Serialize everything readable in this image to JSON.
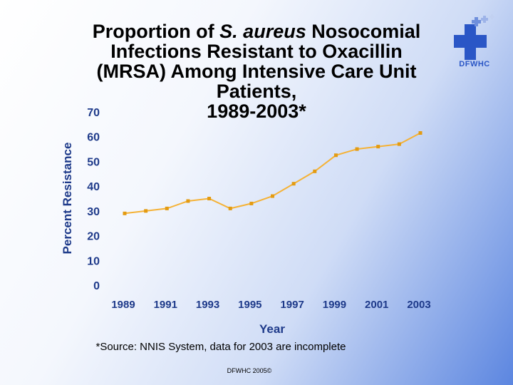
{
  "slide": {
    "title_lines": [
      "Proportion of S. aureus Nosocomial",
      "Infections Resistant to Oxacillin",
      "(MRSA) Among Intensive Care Unit",
      "Patients,",
      "1989-2003*"
    ],
    "title_italic": "S. aureus",
    "logo_text": "DFWHC",
    "source_note": "*Source: NNIS System, data for 2003 are incomplete",
    "footer": "DFWHC 2005©"
  },
  "colors": {
    "line": "#f5b236",
    "marker": "#e39b12",
    "axis_text": "#1e3a8a",
    "logo": "#2a56c6"
  },
  "chart_data": {
    "type": "line",
    "title": "Proportion of S. aureus Nosocomial Infections Resistant to Oxacillin (MRSA) Among Intensive Care Unit Patients, 1989-2003*",
    "xlabel": "Year",
    "ylabel": "Percent Resistance",
    "x": [
      1989,
      1990,
      1991,
      1992,
      1993,
      1994,
      1995,
      1996,
      1997,
      1998,
      1999,
      2000,
      2001,
      2002,
      2003
    ],
    "series": [
      {
        "name": "MRSA",
        "values": [
          29,
          30,
          31,
          34,
          35,
          31,
          33,
          36,
          41,
          46,
          52.5,
          55,
          56,
          57,
          61.5
        ]
      }
    ],
    "x_tick_labels": [
      "1989",
      "1991",
      "1993",
      "1995",
      "1997",
      "1999",
      "2001",
      "2003"
    ],
    "y_tick_labels": [
      "0",
      "10",
      "20",
      "30",
      "40",
      "50",
      "60",
      "70"
    ],
    "ylim": [
      0,
      70
    ],
    "xlim": [
      1989,
      2003
    ],
    "grid": false,
    "legend": "none"
  }
}
